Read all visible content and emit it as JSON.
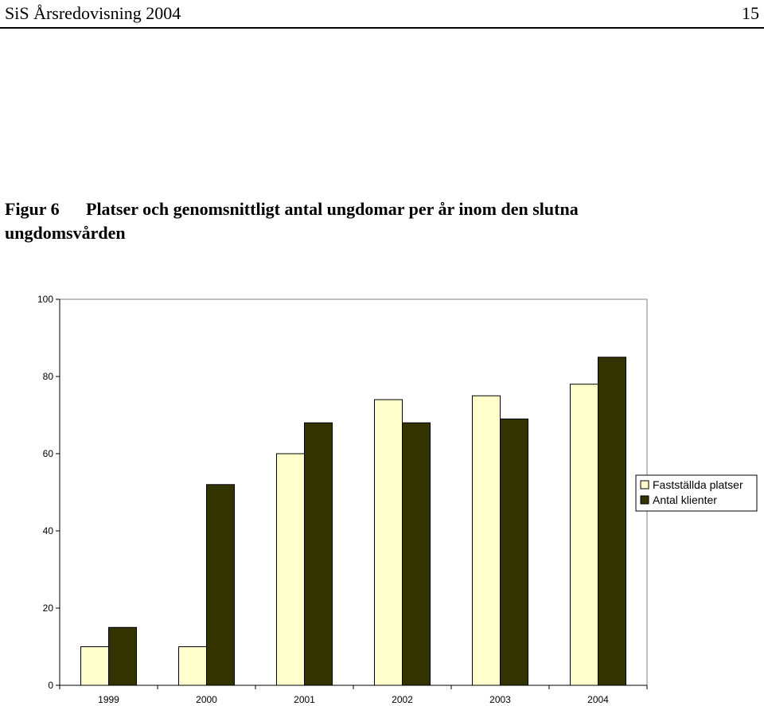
{
  "header": {
    "title": "SiS Årsredovisning 2004",
    "page_number": "15"
  },
  "figure": {
    "label": "Figur 6",
    "title_line1": "Platser och genomsnittligt antal ungdomar per år inom den slutna",
    "title_line2": "ungdomsvården"
  },
  "chart_data": {
    "type": "bar",
    "title": "",
    "xlabel": "",
    "ylabel": "",
    "categories": [
      "1999",
      "2000",
      "2001",
      "2002",
      "2003",
      "2004"
    ],
    "series": [
      {
        "name": "Fastställda platser",
        "values": [
          10,
          10,
          60,
          74,
          75,
          78
        ],
        "color": "#FFFFCC"
      },
      {
        "name": "Antal klienter",
        "values": [
          15,
          52,
          68,
          68,
          69,
          85
        ],
        "color": "#333300"
      }
    ],
    "ylim": [
      0,
      100
    ],
    "yticks": [
      0,
      20,
      40,
      60,
      80,
      100
    ],
    "grid": false,
    "legend_position": "right"
  }
}
